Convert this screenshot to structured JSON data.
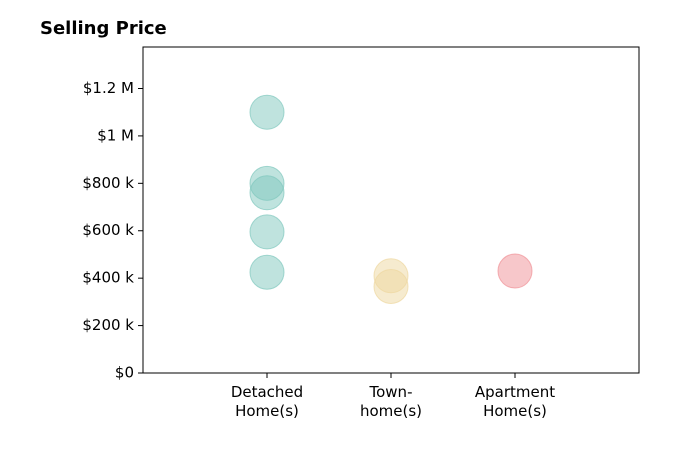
{
  "chart_data": {
    "type": "strip",
    "title": "Selling Price",
    "categories": [
      "Detached\nHome(s)",
      "Town-\nhome(s)",
      "Apartment\nHome(s)"
    ],
    "values": [
      [
        1100000,
        800000,
        760000,
        595000,
        425000
      ],
      [
        410000,
        365000
      ],
      [
        430000
      ]
    ],
    "colors": [
      "#7fc7be",
      "#eed7a0",
      "#ef9095"
    ],
    "ylim": [
      0,
      1375000
    ],
    "yticks": [
      {
        "value": 0,
        "label": "$0"
      },
      {
        "value": 200000,
        "label": "$200 k"
      },
      {
        "value": 400000,
        "label": "$400 k"
      },
      {
        "value": 600000,
        "label": "$600 k"
      },
      {
        "value": 800000,
        "label": "$800 k"
      },
      {
        "value": 1000000,
        "label": "$1 M"
      },
      {
        "value": 1200000,
        "label": "$1.2 M"
      }
    ]
  }
}
